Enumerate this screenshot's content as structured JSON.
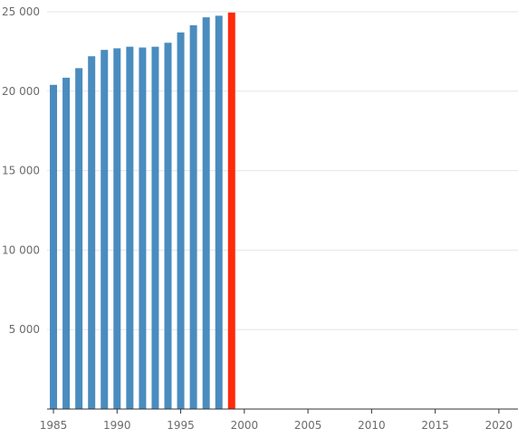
{
  "chart_data": {
    "type": "bar",
    "x_ticks": [
      "1985",
      "1990",
      "1995",
      "2000",
      "2005",
      "2010",
      "2015",
      "2020"
    ],
    "y_ticks": [
      "5 000",
      "10 000",
      "15 000",
      "20 000",
      "25 000"
    ],
    "y_tick_values": [
      5000,
      10000,
      15000,
      20000,
      25000
    ],
    "xlim": [
      1984.5,
      2021.5
    ],
    "ylim": [
      0,
      25000
    ],
    "grid": "horizontal",
    "legend": "none",
    "colors": {
      "bar": "#4a8cbf",
      "highlight": "#ff2a0a",
      "grid": "#e6e6e6",
      "axis": "#333333"
    },
    "series": [
      {
        "x": [
          1985,
          1986,
          1987,
          1988,
          1989,
          1990,
          1991,
          1992,
          1993,
          1994,
          1995,
          1996,
          1997,
          1998,
          1999
        ],
        "values": [
          20400,
          20850,
          21450,
          22200,
          22600,
          22700,
          22800,
          22750,
          22800,
          23050,
          23700,
          24150,
          24650,
          24750,
          24950
        ],
        "highlight_x": 1999
      }
    ]
  }
}
